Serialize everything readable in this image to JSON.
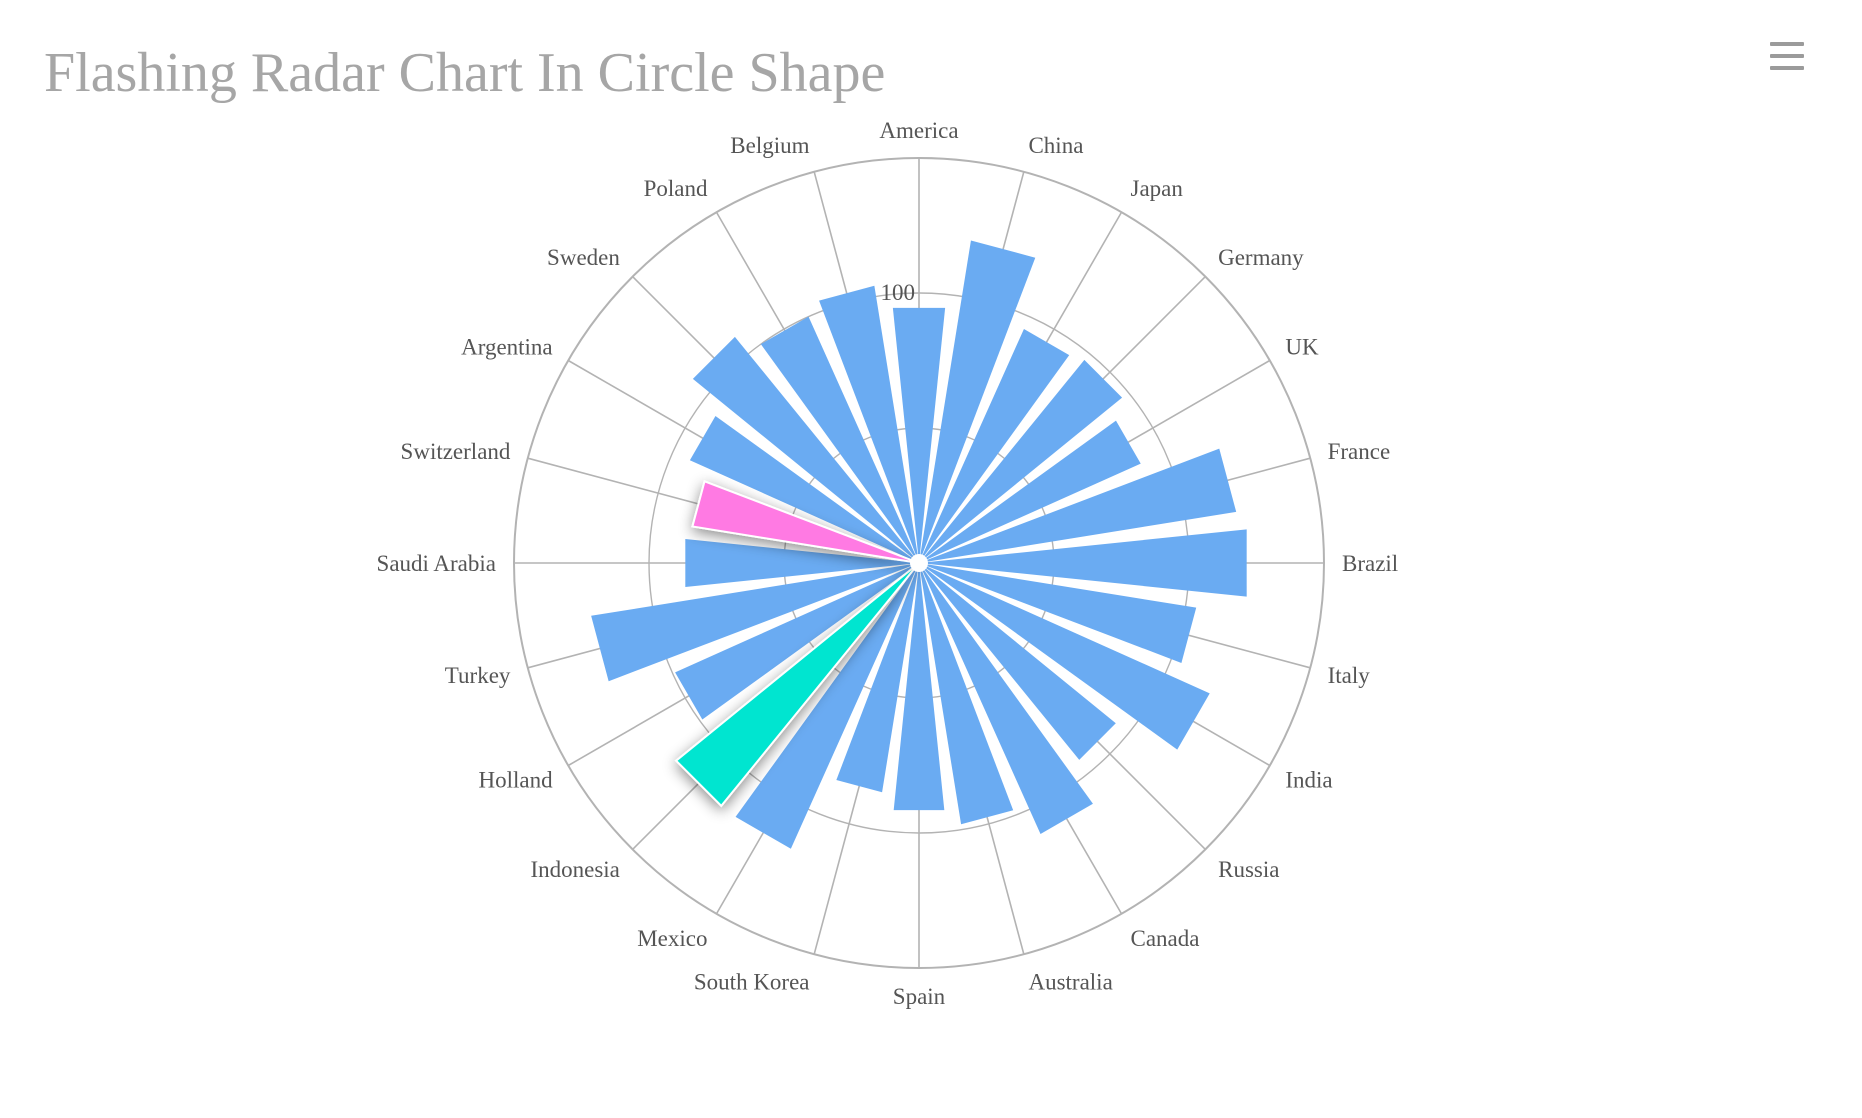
{
  "chart_title": "Flashing Radar Chart In Circle Shape",
  "menu_icon": "hamburger-menu-icon",
  "colors": {
    "bar": "#6aabf2",
    "highlight_pink": "#ff7ae3",
    "highlight_teal": "#00e5d0",
    "grid": "#b3b3b3",
    "title": "#a6a6a6",
    "label": "#555555"
  },
  "chart_data": {
    "type": "bar",
    "polar": true,
    "title": "Flashing Radar Chart In Circle Shape",
    "categories": [
      "America",
      "China",
      "Japan",
      "Germany",
      "UK",
      "France",
      "Brazil",
      "Italy",
      "India",
      "Russia",
      "Canada",
      "Australia",
      "Spain",
      "South Korea",
      "Mexico",
      "Indonesia",
      "Holland",
      "Turkey",
      "Saudi Arabia",
      "Switzerland",
      "Argentina",
      "Sweden",
      "Poland",
      "Belgium"
    ],
    "values": [
      95,
      121,
      95,
      97,
      90,
      119,
      122,
      104,
      118,
      94,
      110,
      98,
      92,
      86,
      116,
      116,
      99,
      123,
      87,
      85,
      93,
      108,
      100,
      104
    ],
    "highlighted": [
      {
        "category": "Switzerland",
        "color": "#ff7ae3"
      },
      {
        "category": "Indonesia",
        "color": "#00e5d0"
      }
    ],
    "radial_axis": {
      "min": 0,
      "max": 150,
      "ticks": [
        50,
        100
      ]
    },
    "tick_labels": [
      "100"
    ],
    "grid": true,
    "legend": "none"
  }
}
